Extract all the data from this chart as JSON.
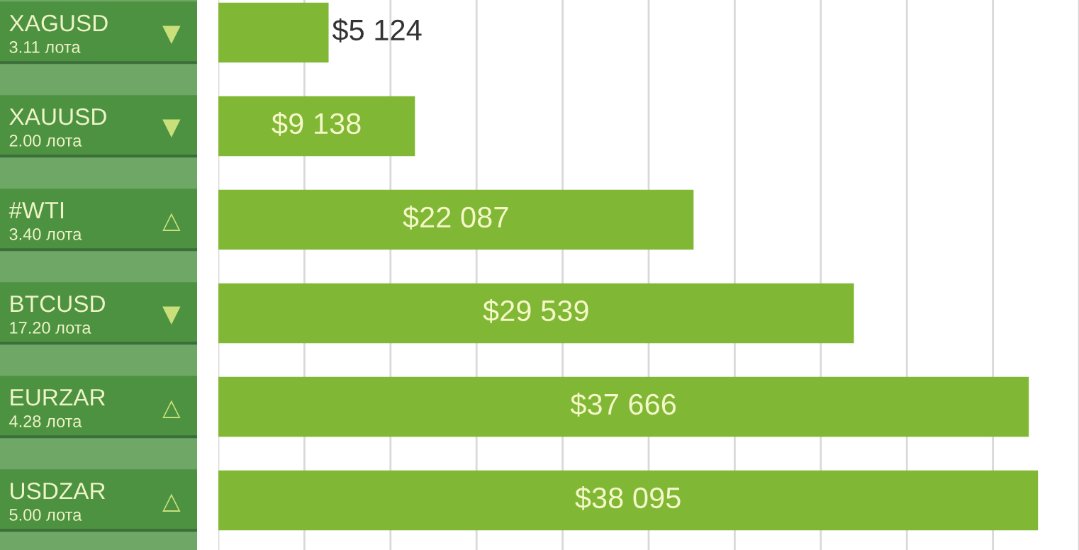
{
  "chart_data": {
    "type": "bar",
    "orientation": "horizontal",
    "categories": [
      "XAGUSD",
      "XAUUSD",
      "#WTI",
      "BTCUSD",
      "EURZAR",
      "USDZAR"
    ],
    "values": [
      5124,
      9138,
      22087,
      29539,
      37666,
      38095
    ],
    "value_labels": [
      "$5 124",
      "$9 138",
      "$22 087",
      "$29 539",
      "$37 666",
      "$38 095"
    ],
    "color": "#80b734",
    "xticks": [
      {
        "value": 0,
        "label": null
      },
      {
        "value": 4000,
        "label": null
      },
      {
        "value": 8000,
        "label": null
      },
      {
        "value": 12000,
        "label": null
      },
      {
        "value": 16000,
        "label": null
      },
      {
        "value": 20000,
        "label": null
      },
      {
        "value": 24000,
        "label": null
      },
      {
        "value": 28000,
        "label": null
      },
      {
        "value": 32000,
        "label": null
      },
      {
        "value": 36000,
        "label": null
      },
      {
        "value": 40000,
        "label": null
      }
    ],
    "grid": "x",
    "tick_labels": "y",
    "annotations": [
      "3.11 лота",
      "2.00 лота",
      "3.40 лота",
      "17.20 лота",
      "4.28 лота",
      "5.00 лота",
      "▼",
      "▼",
      "△",
      "▼",
      "△",
      "△"
    ]
  }
}
